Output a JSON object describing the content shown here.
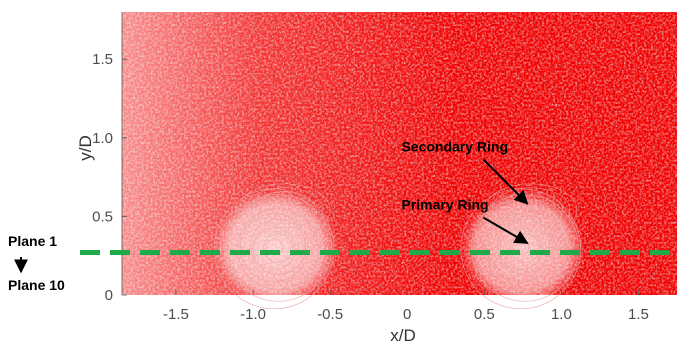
{
  "chart_data": {
    "type": "heatmap",
    "title": "",
    "xlabel": "x/D",
    "ylabel": "y/D",
    "xlim": [
      -1.85,
      1.75
    ],
    "ylim": [
      0,
      1.8
    ],
    "x_ticks": [
      {
        "value": -1.5,
        "label": "-1.5"
      },
      {
        "value": -1.0,
        "label": "-1.0"
      },
      {
        "value": -0.5,
        "label": "-0.5"
      },
      {
        "value": 0,
        "label": "0"
      },
      {
        "value": 0.5,
        "label": "0.5"
      },
      {
        "value": 1.0,
        "label": "1.0"
      },
      {
        "value": 1.5,
        "label": "1.5"
      }
    ],
    "y_ticks": [
      {
        "value": 0,
        "label": "0"
      },
      {
        "value": 0.5,
        "label": "0.5"
      },
      {
        "value": 1.0,
        "label": "1.0"
      },
      {
        "value": 1.5,
        "label": "1.5"
      }
    ],
    "colormap": [
      "#ffffff",
      "#c80000"
    ],
    "rings": [
      {
        "x": -0.85,
        "y": 0.3
      },
      {
        "x": 0.75,
        "y": 0.3
      }
    ],
    "annotations": [
      {
        "label": "Secondary Ring",
        "text_x": 0.3,
        "text_y": 0.9,
        "point_x": 0.78,
        "point_y": 0.58
      },
      {
        "label": "Primary Ring",
        "text_x": 0.3,
        "text_y": 0.53,
        "point_x": 0.78,
        "point_y": 0.33
      }
    ],
    "plane_line": {
      "y": 0.27,
      "color": "#1faa4a"
    },
    "plane_labels": {
      "top": "Plane 1",
      "bottom": "Plane 10"
    },
    "grid": false
  }
}
